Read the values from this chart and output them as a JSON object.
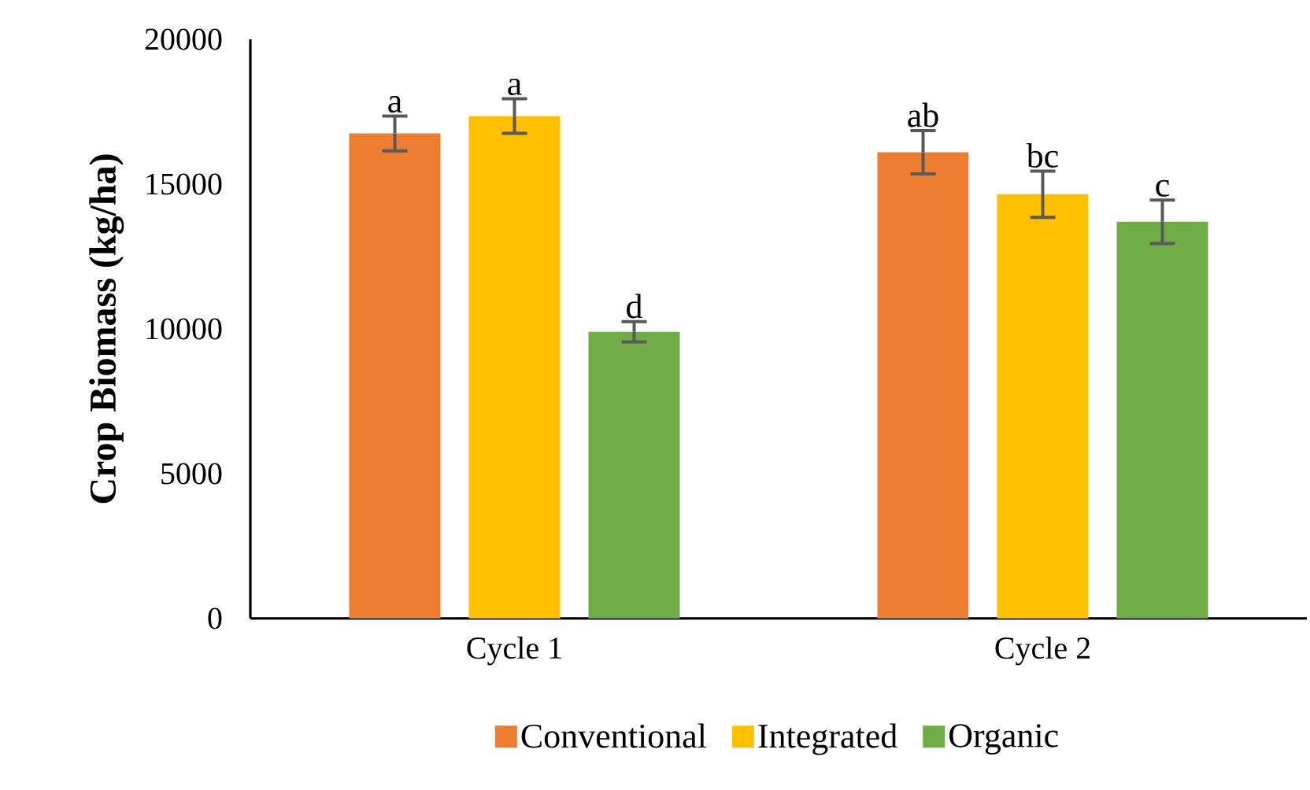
{
  "chart_data": {
    "type": "bar",
    "ylabel": "Crop Biomass (kg/ha)",
    "categories": [
      "Cycle 1",
      "Cycle 2"
    ],
    "series": [
      {
        "name": "Conventional",
        "color": "#ed7d31",
        "values": [
          16750,
          16100
        ],
        "errors": [
          600,
          750
        ]
      },
      {
        "name": "Integrated",
        "color": "#ffc000",
        "values": [
          17350,
          14650
        ],
        "errors": [
          600,
          800
        ]
      },
      {
        "name": "Organic",
        "color": "#70ad47",
        "values": [
          9900,
          13700
        ],
        "errors": [
          350,
          750
        ]
      }
    ],
    "ylim": [
      0,
      20000
    ],
    "yticks": [
      0,
      5000,
      10000,
      15000,
      20000
    ],
    "legend": "bottom",
    "grid": false,
    "annotations": [
      "a",
      "a",
      "d",
      "ab",
      "bc",
      "c"
    ]
  }
}
